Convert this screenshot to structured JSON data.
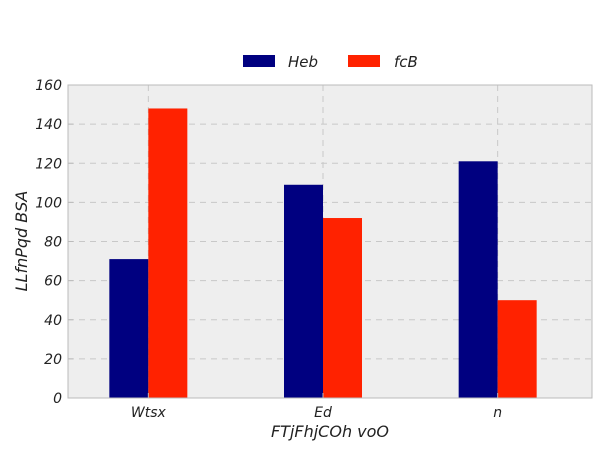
{
  "chart_data": {
    "type": "bar",
    "title": "",
    "xlabel": "FTjFhjCOh voO",
    "ylabel": "LLfnPqd BSA",
    "categories": [
      "Wtsx",
      "Ed",
      "n"
    ],
    "series": [
      {
        "name": "Heb",
        "color": "#000080",
        "values": [
          71,
          109,
          121
        ]
      },
      {
        "name": "fcB",
        "color": "#ff2200",
        "values": [
          148,
          92,
          50
        ]
      }
    ],
    "ylim": [
      0,
      160
    ],
    "yticks": [
      0,
      20,
      40,
      60,
      80,
      100,
      120,
      140,
      160
    ],
    "grid": true,
    "legend_position": "top-center",
    "plot_background": "#eeeeee"
  }
}
